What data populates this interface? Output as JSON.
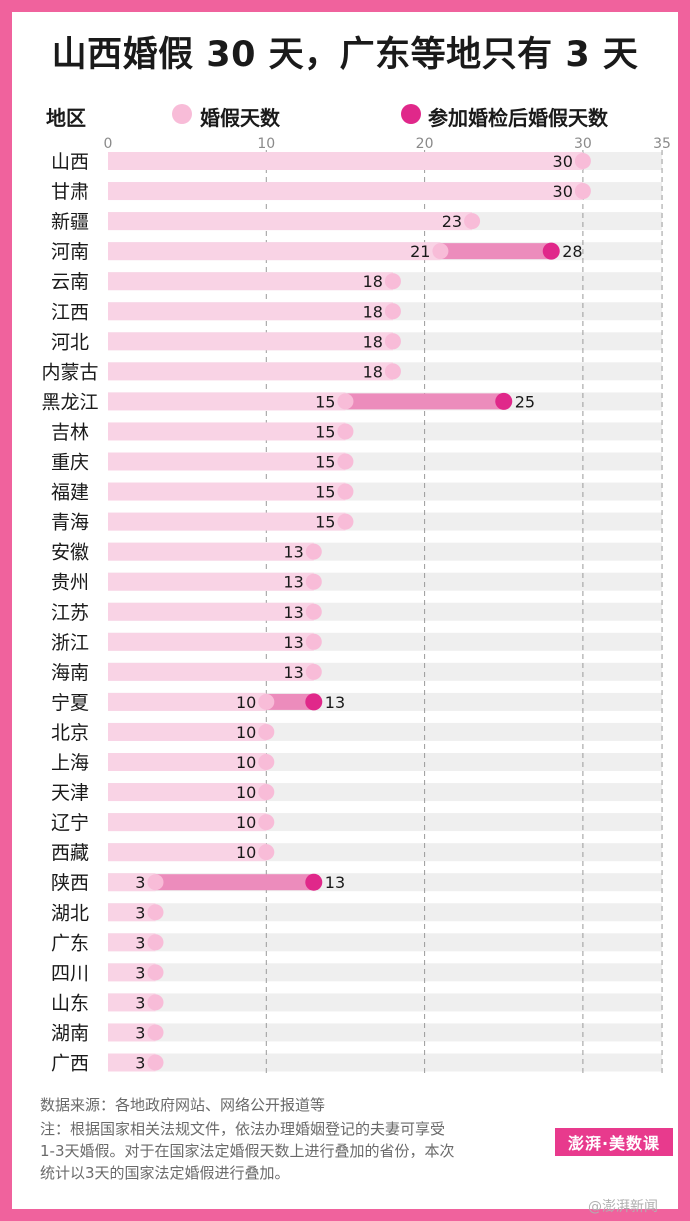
{
  "title": "山西婚假 30 天，广东等地只有 3 天",
  "header_label": "地区",
  "legend": {
    "base": "婚假天数",
    "extended": "参加婚检后婚假天数"
  },
  "colors": {
    "background": "#f0629d",
    "base_dot": "#f8bcd8",
    "base_bar": "#f9d3e5",
    "extended_dot": "#e0288a",
    "extended_bar": "#ec8cbc",
    "row_bg": "#efefef"
  },
  "chart_data": {
    "type": "bar",
    "xlim": [
      0,
      35
    ],
    "xticks": [
      0,
      10,
      20,
      30,
      35
    ],
    "grid": true,
    "legend_position": "top",
    "categories": [
      "山西",
      "甘肃",
      "新疆",
      "河南",
      "云南",
      "江西",
      "河北",
      "内蒙古",
      "黑龙江",
      "吉林",
      "重庆",
      "福建",
      "青海",
      "安徽",
      "贵州",
      "江苏",
      "浙江",
      "海南",
      "宁夏",
      "北京",
      "上海",
      "天津",
      "辽宁",
      "西藏",
      "陕西",
      "湖北",
      "广东",
      "四川",
      "山东",
      "湖南",
      "广西"
    ],
    "series": [
      {
        "name": "婚假天数",
        "values": [
          30,
          30,
          23,
          21,
          18,
          18,
          18,
          18,
          15,
          15,
          15,
          15,
          15,
          13,
          13,
          13,
          13,
          13,
          10,
          10,
          10,
          10,
          10,
          10,
          3,
          3,
          3,
          3,
          3,
          3,
          3
        ]
      },
      {
        "name": "参加婚检后婚假天数",
        "values": [
          null,
          null,
          null,
          28,
          null,
          null,
          null,
          null,
          25,
          null,
          null,
          null,
          null,
          null,
          null,
          null,
          null,
          null,
          13,
          null,
          null,
          null,
          null,
          null,
          13,
          null,
          null,
          null,
          null,
          null,
          null
        ]
      }
    ]
  },
  "footer": {
    "source": "数据来源：各地政府网站、网络公开报道等",
    "note_line1": "注：根据国家相关法规文件，依法办理婚姻登记的夫妻可享受",
    "note_line2": "1-3天婚假。对于在国家法定婚假天数上进行叠加的省份，本次",
    "note_line3": "统计以3天的国家法定婚假进行叠加。"
  },
  "logo": "澎湃·美数课",
  "watermark": "@澎湃新闻"
}
